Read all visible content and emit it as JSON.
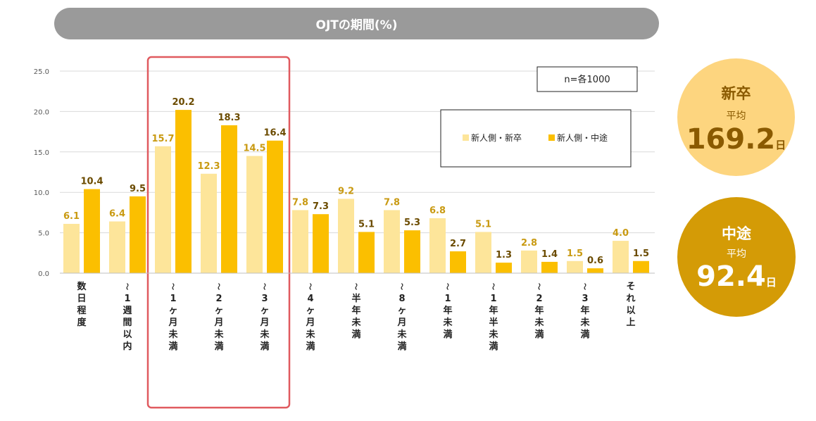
{
  "title": "OJTの期間(%)",
  "sample_note": "n=各1000",
  "colors": {
    "series_new": "#fde59a",
    "series_mid": "#fbbf00",
    "label_new": "#c99a12",
    "label_mid": "#6b4b00",
    "highlight": "#e05a5f",
    "grid": "#d9d9d9",
    "title_bg": "#9a9a9a"
  },
  "averages": [
    {
      "category": "新卒",
      "label": "平均",
      "value": "169.2",
      "unit": "日"
    },
    {
      "category": "中途",
      "label": "平均",
      "value": "92.4",
      "unit": "日"
    }
  ],
  "chart_data": {
    "type": "bar",
    "categories": [
      "数日程度",
      "〜1週間以内",
      "〜1ヶ月未満",
      "〜2ヶ月未満",
      "〜3ヶ月未満",
      "〜4ヶ月未満",
      "〜半年未満",
      "〜8ヶ月未満",
      "〜1年未満",
      "〜1年半未満",
      "〜2年未満",
      "〜3年未満",
      "それ以上"
    ],
    "series": [
      {
        "name": "新人側・新卒",
        "values": [
          6.1,
          6.4,
          15.7,
          12.3,
          14.5,
          7.8,
          9.2,
          7.8,
          6.8,
          5.1,
          2.8,
          1.5,
          4.0
        ]
      },
      {
        "name": "新人側・中途",
        "values": [
          10.4,
          9.5,
          20.2,
          18.3,
          16.4,
          7.3,
          5.1,
          5.3,
          2.7,
          1.3,
          1.4,
          0.6,
          1.5
        ]
      }
    ],
    "ylim": [
      0,
      25
    ],
    "yticks": [
      "0.0",
      "5.0",
      "10.0",
      "15.0",
      "20.0",
      "25.0"
    ],
    "grid": true,
    "legend_position": "top-right",
    "highlight_categories": [
      "〜1ヶ月未満",
      "〜2ヶ月未満",
      "〜3ヶ月未満"
    ]
  }
}
